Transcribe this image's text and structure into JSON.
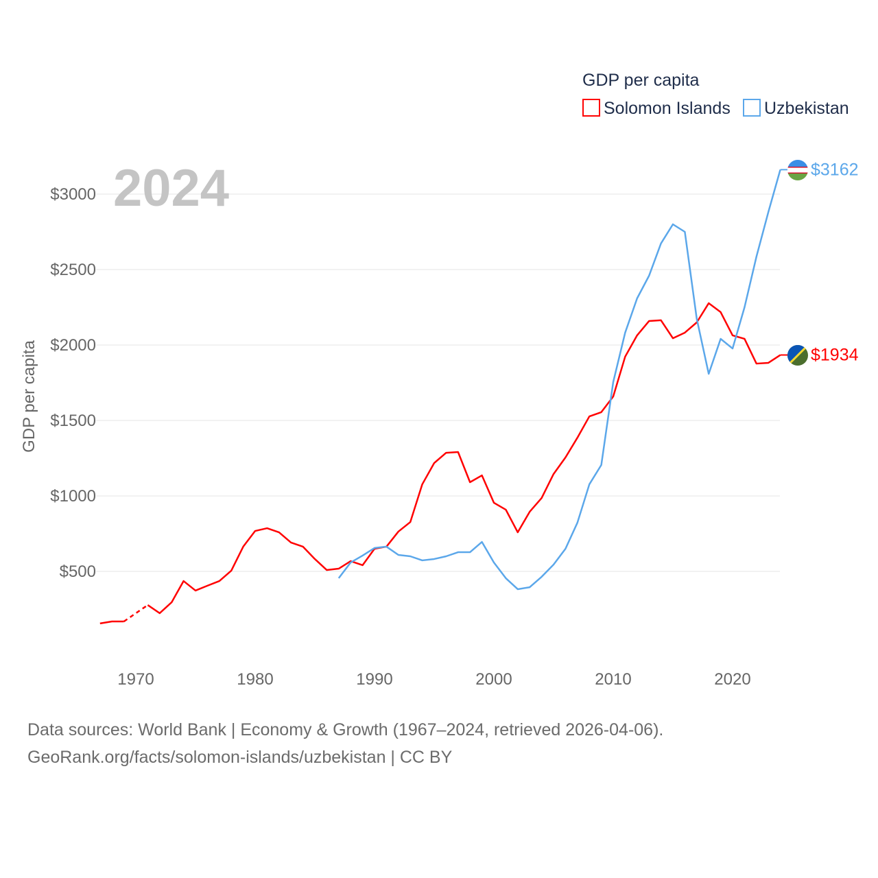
{
  "chart_data": {
    "type": "line",
    "big_year_label": "2024",
    "ylabel": "GDP per capita",
    "xlabel": "",
    "legend_title": "GDP per capita",
    "legend_position": "top-right",
    "ylim": [
      0,
      3300
    ],
    "xlim": [
      1967,
      2024
    ],
    "y_ticks": [
      500,
      1000,
      1500,
      2000,
      2500,
      3000
    ],
    "y_tick_labels": [
      "$500",
      "$1000",
      "$1500",
      "$2000",
      "$2500",
      "$3000"
    ],
    "x_ticks": [
      1970,
      1980,
      1990,
      2000,
      2010,
      2020
    ],
    "x_tick_labels": [
      "1970",
      "1980",
      "1990",
      "2000",
      "2010",
      "2020"
    ],
    "grid": true,
    "series": [
      {
        "name": "Solomon Islands",
        "color": "#ff0000",
        "end_label": "$1934",
        "start_year": 1967,
        "values": [
          155,
          168,
          168,
          null,
          277,
          223,
          295,
          436,
          373,
          405,
          436,
          505,
          664,
          768,
          786,
          759,
          691,
          664,
          582,
          509,
          518,
          568,
          541,
          650,
          664,
          764,
          827,
          1077,
          1218,
          1286,
          1291,
          1091,
          1136,
          955,
          909,
          759,
          895,
          986,
          1145,
          1255,
          1386,
          1527,
          1555,
          1659,
          1923,
          2064,
          2159,
          2164,
          2045,
          2082,
          2150,
          2277,
          2218,
          2064,
          2041,
          1877,
          1882,
          1934
        ]
      },
      {
        "name": "Uzbekistan",
        "color": "#5ba7ea",
        "end_label": "$3162",
        "start_year": 1987,
        "values": [
          455,
          559,
          605,
          655,
          664,
          609,
          600,
          573,
          582,
          600,
          627,
          627,
          695,
          559,
          455,
          382,
          395,
          464,
          545,
          650,
          823,
          1077,
          1205,
          1755,
          2082,
          2309,
          2459,
          2673,
          2800,
          2750,
          2173,
          1809,
          2041,
          1977,
          2250,
          2586,
          2882,
          3162
        ]
      }
    ]
  },
  "footer": {
    "line1": "Data sources: World Bank | Economy & Growth (1967–2024, retrieved 2026-04-06).",
    "line2": "GeoRank.org/facts/solomon-islands/uzbekistan | CC BY"
  }
}
